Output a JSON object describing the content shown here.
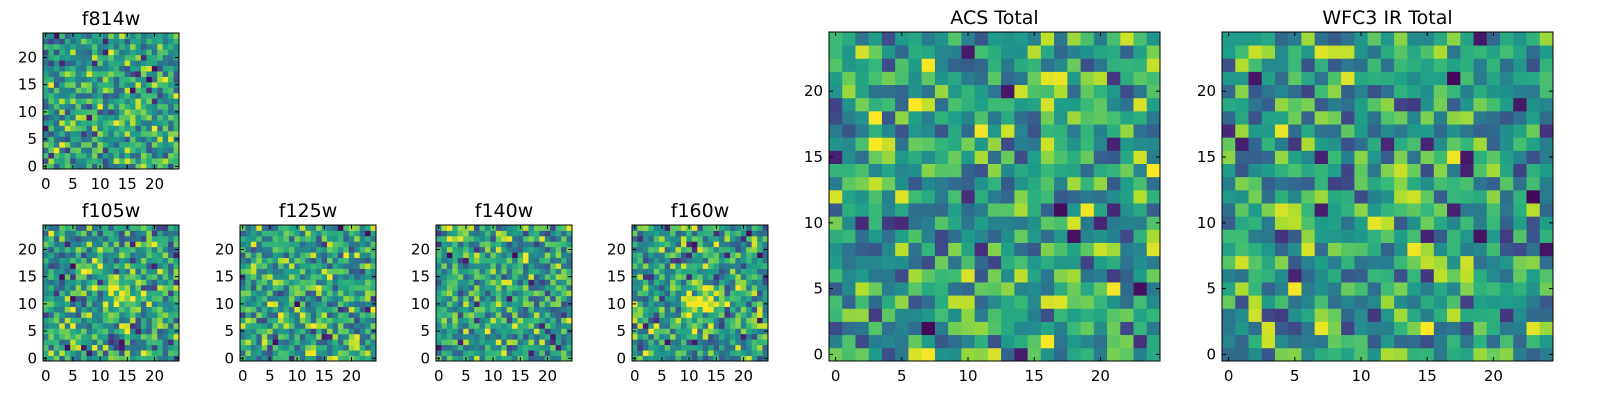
{
  "chart_data": [
    {
      "type": "heatmap",
      "title": "f814w",
      "grid_size": 25,
      "xlim": [
        0,
        24
      ],
      "ylim": [
        0,
        24
      ],
      "xticks": [
        0,
        5,
        10,
        15,
        20
      ],
      "yticks": [
        0,
        5,
        10,
        15,
        20
      ],
      "xticklabels": [
        "0",
        "5",
        "10",
        "15",
        "20"
      ],
      "yticklabels": [
        "0",
        "5",
        "10",
        "15",
        "20"
      ],
      "colormap": "viridis",
      "grid": false,
      "noise_scale": "fine"
    },
    {
      "type": "heatmap",
      "title": "f105w",
      "grid_size": 25,
      "xlim": [
        0,
        24
      ],
      "ylim": [
        0,
        24
      ],
      "xticks": [
        0,
        5,
        10,
        15,
        20
      ],
      "yticks": [
        0,
        5,
        10,
        15,
        20
      ],
      "xticklabels": [
        "0",
        "5",
        "10",
        "15",
        "20"
      ],
      "yticklabels": [
        "0",
        "5",
        "10",
        "15",
        "20"
      ],
      "colormap": "viridis",
      "grid": false,
      "bright_center": [
        13,
        13
      ]
    },
    {
      "type": "heatmap",
      "title": "f125w",
      "grid_size": 25,
      "xlim": [
        0,
        24
      ],
      "ylim": [
        0,
        24
      ],
      "xticks": [
        0,
        5,
        10,
        15,
        20
      ],
      "yticks": [
        0,
        5,
        10,
        15,
        20
      ],
      "xticklabels": [
        "0",
        "5",
        "10",
        "15",
        "20"
      ],
      "yticklabels": [
        "0",
        "5",
        "10",
        "15",
        "20"
      ],
      "colormap": "viridis",
      "grid": false
    },
    {
      "type": "heatmap",
      "title": "f140w",
      "grid_size": 25,
      "xlim": [
        0,
        24
      ],
      "ylim": [
        0,
        24
      ],
      "xticks": [
        0,
        5,
        10,
        15,
        20
      ],
      "yticks": [
        0,
        5,
        10,
        15,
        20
      ],
      "xticklabels": [
        "0",
        "5",
        "10",
        "15",
        "20"
      ],
      "yticklabels": [
        "0",
        "5",
        "10",
        "15",
        "20"
      ],
      "colormap": "viridis",
      "grid": false
    },
    {
      "type": "heatmap",
      "title": "f160w",
      "grid_size": 25,
      "xlim": [
        0,
        24
      ],
      "ylim": [
        0,
        24
      ],
      "xticks": [
        0,
        5,
        10,
        15,
        20
      ],
      "yticks": [
        0,
        5,
        10,
        15,
        20
      ],
      "xticklabels": [
        "0",
        "5",
        "10",
        "15",
        "20"
      ],
      "yticklabels": [
        "0",
        "5",
        "10",
        "15",
        "20"
      ],
      "colormap": "viridis",
      "grid": false,
      "bright_center": [
        12,
        11
      ]
    },
    {
      "type": "heatmap",
      "title": "ACS Total",
      "grid_size": 25,
      "xlim": [
        0,
        24
      ],
      "ylim": [
        0,
        24
      ],
      "xticks": [
        0,
        5,
        10,
        15,
        20
      ],
      "yticks": [
        0,
        5,
        10,
        15,
        20
      ],
      "xticklabels": [
        "0",
        "5",
        "10",
        "15",
        "20"
      ],
      "yticklabels": [
        "0",
        "5",
        "10",
        "15",
        "20"
      ],
      "colormap": "viridis",
      "grid": false
    },
    {
      "type": "heatmap",
      "title": "WFC3 IR Total",
      "grid_size": 25,
      "xlim": [
        0,
        24
      ],
      "ylim": [
        0,
        24
      ],
      "xticks": [
        0,
        5,
        10,
        15,
        20
      ],
      "yticks": [
        0,
        5,
        10,
        15,
        20
      ],
      "xticklabels": [
        "0",
        "5",
        "10",
        "15",
        "20"
      ],
      "yticklabels": [
        "0",
        "5",
        "10",
        "15",
        "20"
      ],
      "colormap": "viridis",
      "grid": false
    }
  ]
}
